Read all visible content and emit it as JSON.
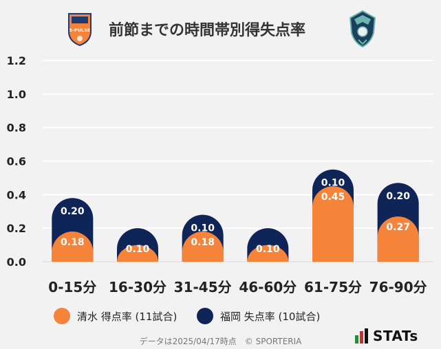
{
  "title": "前節までの時間帯別得失点率",
  "logos": {
    "home": {
      "name": "s-pulse-crest",
      "text": "S-PULSE"
    },
    "away": {
      "name": "avispa-fukuoka-crest"
    }
  },
  "colors": {
    "home": "#f5843a",
    "away": "#0f2557"
  },
  "chart_data": {
    "type": "bar",
    "stacked": true,
    "categories": [
      "0-15分",
      "16-30分",
      "31-45分",
      "46-60分",
      "61-75分",
      "76-90分"
    ],
    "series": [
      {
        "name": "清水 得点率 (11試合)",
        "values": [
          0.18,
          0.1,
          0.18,
          0.1,
          0.45,
          0.27
        ],
        "labels": [
          "0.18",
          "0.10",
          "0.18",
          "0.10",
          "0.45",
          "0.27"
        ]
      },
      {
        "name": "福岡 失点率 (10試合)",
        "values": [
          0.2,
          0.1,
          0.1,
          0.1,
          0.1,
          0.2
        ],
        "labels": [
          "0.20",
          "0.10",
          "0.10",
          "0.10",
          "0.10",
          "0.20"
        ]
      }
    ],
    "yticks": [
      "0.0",
      "0.2",
      "0.4",
      "0.6",
      "0.8",
      "1.0",
      "1.2"
    ],
    "ylim": [
      0,
      1.2
    ],
    "grid": true,
    "legend_position": "bottom"
  },
  "footer": "データは2025/04/17時点　© SPORTERIA",
  "brand": "STATs"
}
